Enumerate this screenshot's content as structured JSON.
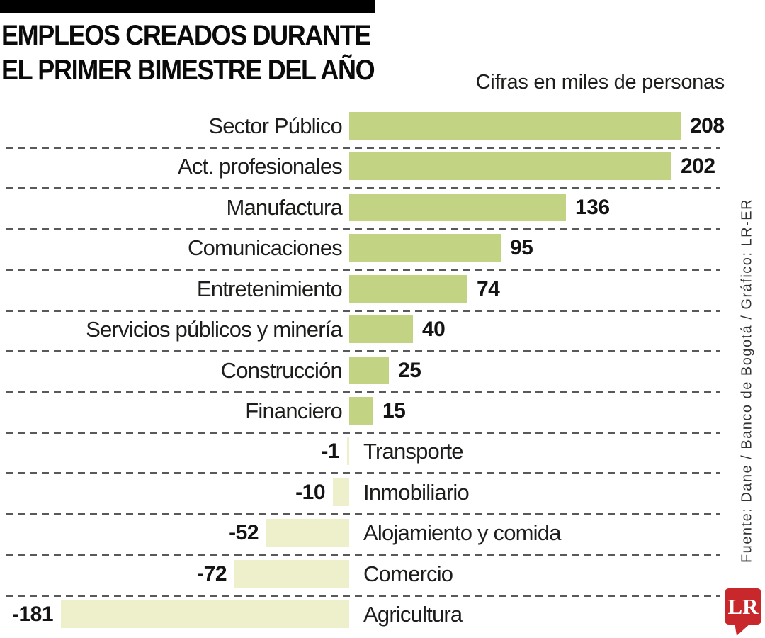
{
  "header": {
    "title_line1": "EMPLEOS CREADOS DURANTE",
    "title_line2": "EL PRIMER BIMESTRE DEL AÑO",
    "subtitle": "Cifras en miles de personas"
  },
  "source_note": "Fuente: Dane / Banco de Bogotá / Gráfico: LR-ER",
  "logo": {
    "text": "LR"
  },
  "colors": {
    "positive_bar": "#c2d383",
    "negative_bar": "#edf0cb",
    "dash_line": "#58595b",
    "logo_red": "#c8272c",
    "text": "#1d1d1b"
  },
  "chart_data": {
    "type": "bar",
    "orientation": "horizontal",
    "title": "EMPLEOS CREADOS DURANTE EL PRIMER BIMESTRE DEL AÑO",
    "subtitle": "Cifras en miles de personas",
    "unit": "miles de personas",
    "categories": [
      "Sector Público",
      "Act. profesionales",
      "Manufactura",
      "Comunicaciones",
      "Entretenimiento",
      "Servicios públicos y minería",
      "Construcción",
      "Financiero",
      "Transporte",
      "Inmobiliario",
      "Alojamiento y comida",
      "Comercio",
      "Agricultura"
    ],
    "values": [
      208,
      202,
      136,
      95,
      74,
      40,
      25,
      15,
      -1,
      -10,
      -52,
      -72,
      -181
    ],
    "value_labels_shown": true,
    "grid": "dashed-row-separators",
    "legend": "none",
    "xlim": [
      -181,
      208
    ]
  }
}
